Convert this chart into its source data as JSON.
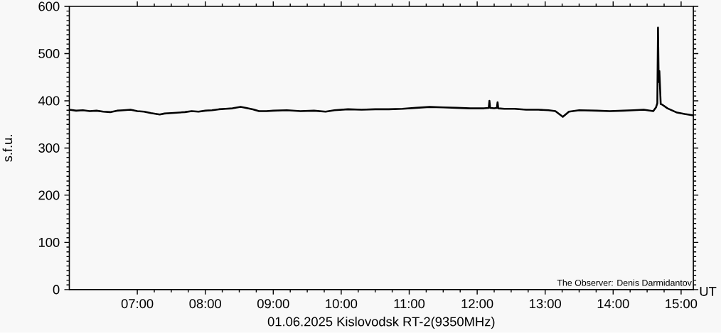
{
  "chart_data": {
    "type": "line",
    "title": "01.06.2025 Kislovodsk RT-2(9350MHz)",
    "xlabel": "UT",
    "ylabel": "s.f.u.",
    "annotations": [
      "The Observer: Denis Darmidantov"
    ],
    "x": [
      6.0,
      6.1,
      6.2,
      6.3,
      6.4,
      6.5,
      6.6,
      6.7,
      6.8,
      6.9,
      7.0,
      7.1,
      7.2,
      7.33,
      7.4,
      7.5,
      7.6,
      7.7,
      7.8,
      7.9,
      8.0,
      8.1,
      8.2,
      8.3,
      8.4,
      8.52,
      8.6,
      8.7,
      8.79,
      8.9,
      9.0,
      9.2,
      9.4,
      9.6,
      9.77,
      9.9,
      10.1,
      10.3,
      10.5,
      10.7,
      10.9,
      11.1,
      11.3,
      11.5,
      11.7,
      11.9,
      12.1,
      12.17,
      12.18,
      12.19,
      12.25,
      12.29,
      12.3,
      12.31,
      12.4,
      12.55,
      12.72,
      12.9,
      13.05,
      13.15,
      13.26,
      13.35,
      13.5,
      13.76,
      13.95,
      14.15,
      14.3,
      14.45,
      14.59,
      14.63,
      14.65,
      14.66,
      14.67,
      14.68,
      14.7,
      14.72,
      14.8,
      14.94,
      15.05,
      15.18
    ],
    "series": [
      {
        "color": "#000000",
        "values": [
          381,
          379,
          380,
          378,
          379,
          377,
          376,
          379,
          380,
          381,
          378,
          377,
          374,
          371,
          373,
          374,
          375,
          376,
          378,
          377,
          379,
          380,
          382,
          383,
          384,
          387,
          385,
          382,
          378,
          378,
          379,
          380,
          378,
          379,
          377,
          380,
          382,
          381,
          382,
          382,
          383,
          385,
          387,
          386,
          385,
          384,
          384,
          385,
          400,
          385,
          384,
          385,
          397,
          384,
          383,
          383,
          381,
          381,
          380,
          378,
          366,
          377,
          380,
          379,
          378,
          379,
          380,
          381,
          378,
          386,
          395,
          555,
          440,
          463,
          393,
          392,
          384,
          375,
          372,
          369
        ]
      }
    ],
    "xlim": [
      6,
      15.18
    ],
    "ylim": [
      0,
      600
    ],
    "xticks": [
      {
        "value": 7,
        "label": "07:00"
      },
      {
        "value": 8,
        "label": "08:00"
      },
      {
        "value": 9,
        "label": "09:00"
      },
      {
        "value": 10,
        "label": "10:00"
      },
      {
        "value": 11,
        "label": "11:00"
      },
      {
        "value": 12,
        "label": "12:00"
      },
      {
        "value": 13,
        "label": "13:00"
      },
      {
        "value": 14,
        "label": "14:00"
      },
      {
        "value": 15,
        "label": "15:00"
      }
    ],
    "yticks": [
      0,
      100,
      200,
      300,
      400,
      500,
      600
    ]
  }
}
